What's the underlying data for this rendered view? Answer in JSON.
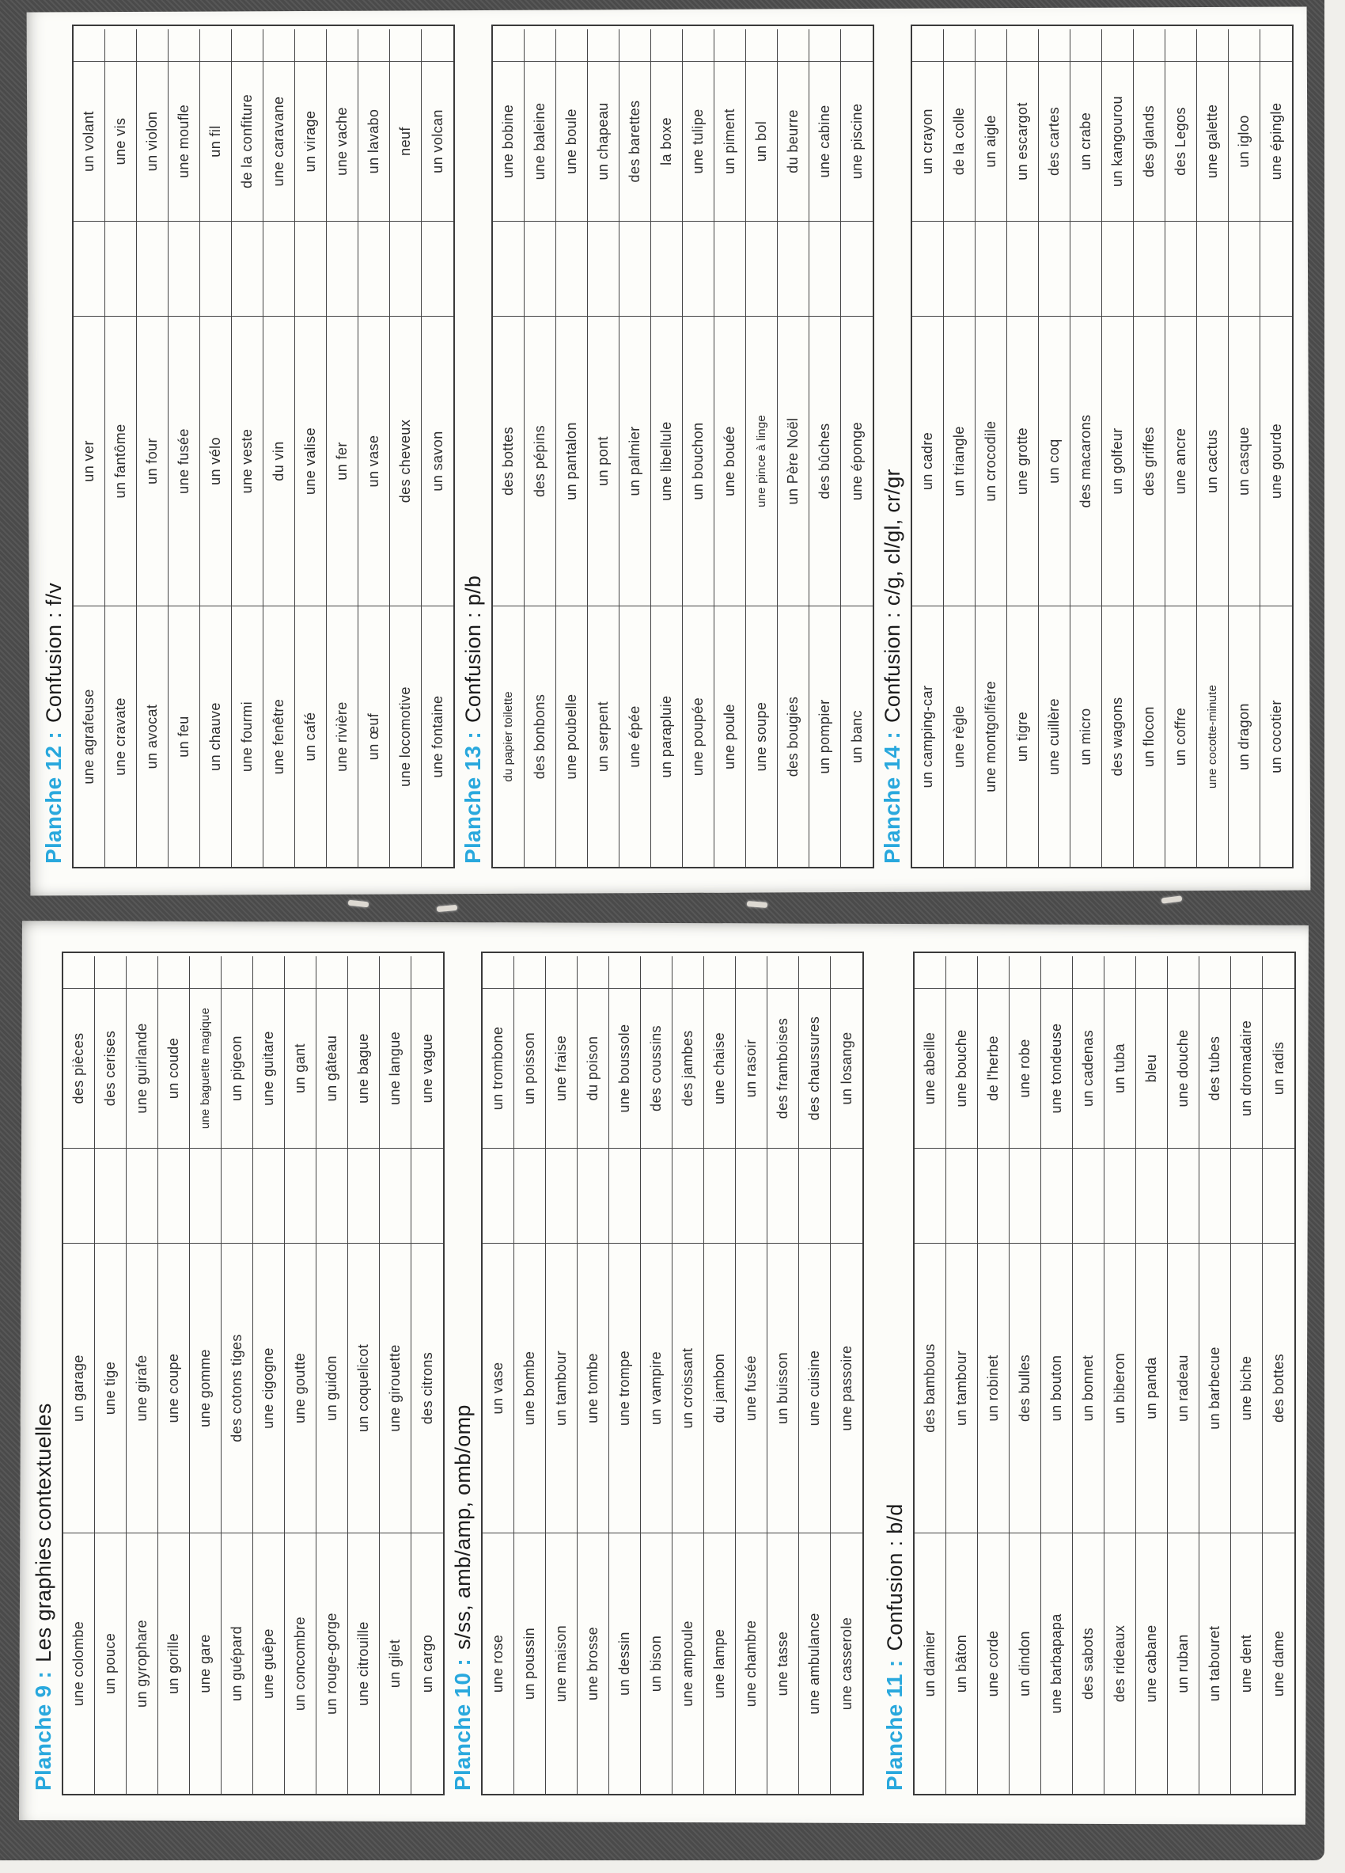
{
  "document": {
    "type": "scanned vocabulary booklet (rotated 90°)",
    "accent_color": "#29a8dd",
    "ink_color": "#2d2d2d",
    "backdrop_color": "#4e4e4e",
    "paper_color": "#fcfcf9"
  },
  "planches": [
    {
      "id": "planche-12",
      "num": "Planche 12 :",
      "subject": "Confusion : f/v",
      "col1": [
        "une agrafeuse",
        "une cravate",
        "un avocat",
        "un feu",
        "un chauve",
        "une fourmi",
        "une fenêtre",
        "un café",
        "une rivière",
        "un œuf",
        "une locomotive",
        "une fontaine"
      ],
      "col2": [
        "un ver",
        "un fantôme",
        "un four",
        "une fusée",
        "un vélo",
        "une veste",
        "du vin",
        "une valise",
        "un fer",
        "un vase",
        "des cheveux",
        "un savon"
      ],
      "col4": [
        "un volant",
        "une vis",
        "un violon",
        "une moufle",
        "un fil",
        "de la confiture",
        "une caravane",
        "un virage",
        "une vache",
        "un lavabo",
        "neuf",
        "un volcan"
      ]
    },
    {
      "id": "planche-13",
      "num": "Planche 13 :",
      "subject": "Confusion : p/b",
      "col1": [
        "du papier toilette",
        "des bonbons",
        "une poubelle",
        "un serpent",
        "une épée",
        "un parapluie",
        "une poupée",
        "une poule",
        "une soupe",
        "des bougies",
        "un pompier",
        "un banc"
      ],
      "col2": [
        "des bottes",
        "des pépins",
        "un pantalon",
        "un pont",
        "un palmier",
        "une libellule",
        "un bouchon",
        "une bouée",
        "une pince à linge",
        "un Père Noël",
        "des bûches",
        "une éponge"
      ],
      "col4": [
        "une bobine",
        "une baleine",
        "une boule",
        "un chapeau",
        "des barettes",
        "la boxe",
        "une tulipe",
        "un piment",
        "un bol",
        "du beurre",
        "une cabine",
        "une piscine"
      ]
    },
    {
      "id": "planche-14",
      "num": "Planche 14 :",
      "subject": "Confusion : c/g, cl/gl, cr/gr",
      "col1": [
        "un camping-car",
        "une règle",
        "une montgolfière",
        "un tigre",
        "une cuillère",
        "un micro",
        "des wagons",
        "un flocon",
        "un coffre",
        "une cocotte-minute",
        "un dragon",
        "un cocotier"
      ],
      "col2": [
        "un cadre",
        "un triangle",
        "un crocodile",
        "une grotte",
        "un coq",
        "des macarons",
        "un golfeur",
        "des griffes",
        "une ancre",
        "un cactus",
        "un casque",
        "une gourde"
      ],
      "col4": [
        "un crayon",
        "de la colle",
        "un aigle",
        "un escargot",
        "des cartes",
        "un crabe",
        "un kangourou",
        "des glands",
        "des Legos",
        "une galette",
        "un igloo",
        "une épingle"
      ]
    },
    {
      "id": "planche-9",
      "num": "Planche 9 :",
      "subject": "Les graphies contextuelles",
      "col1": [
        "une colombe",
        "un pouce",
        "un gyrophare",
        "un gorille",
        "une gare",
        "un guépard",
        "une guêpe",
        "un concombre",
        "un rouge-gorge",
        "une citrouille",
        "un gilet",
        "un cargo"
      ],
      "col2": [
        "un garage",
        "une tige",
        "une girafe",
        "une coupe",
        "une gomme",
        "des cotons tiges",
        "une cigogne",
        "une goutte",
        "un guidon",
        "un coquelicot",
        "une girouette",
        "des citrons"
      ],
      "col4": [
        "des pièces",
        "des cerises",
        "une guirlande",
        "un coude",
        "une baguette magique",
        "un pigeon",
        "une guitare",
        "un gant",
        "un gâteau",
        "une bague",
        "une langue",
        "une vague"
      ]
    },
    {
      "id": "planche-10",
      "num": "Planche 10 :",
      "subject": "s/ss, amb/amp, omb/omp",
      "col1": [
        "une rose",
        "un poussin",
        "une maison",
        "une brosse",
        "un dessin",
        "un bison",
        "une ampoule",
        "une lampe",
        "une chambre",
        "une tasse",
        "une ambulance",
        "une casserole"
      ],
      "col2": [
        "un vase",
        "une bombe",
        "un tambour",
        "une tombe",
        "une trompe",
        "un vampire",
        "un croissant",
        "du jambon",
        "une fusée",
        "un buisson",
        "une cuisine",
        "une passoire"
      ],
      "col4": [
        "un trombone",
        "un poisson",
        "une fraise",
        "du poison",
        "une boussole",
        "des coussins",
        "des jambes",
        "une chaise",
        "un rasoir",
        "des framboises",
        "des chaussures",
        "un losange"
      ]
    },
    {
      "id": "planche-11",
      "num": "Planche 11 :",
      "subject": "Confusion : b/d",
      "col1": [
        "un damier",
        "un bâton",
        "une corde",
        "un dindon",
        "une barbapapa",
        "des sabots",
        "des rideaux",
        "une cabane",
        "un ruban",
        "un tabouret",
        "une dent",
        "une dame"
      ],
      "col2": [
        "des bambous",
        "un tambour",
        "un robinet",
        "des bulles",
        "un bouton",
        "un bonnet",
        "un biberon",
        "un panda",
        "un radeau",
        "un barbecue",
        "une biche",
        "des bottes"
      ],
      "col4": [
        "une abeille",
        "une bouche",
        "de l'herbe",
        "une robe",
        "une tondeuse",
        "un cadenas",
        "un tuba",
        "bleu",
        "une douche",
        "des tubes",
        "un dromadaire",
        "un radis"
      ]
    }
  ]
}
